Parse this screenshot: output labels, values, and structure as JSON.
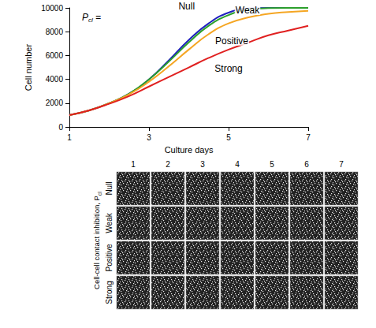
{
  "chart_data": {
    "type": "line",
    "annotation": {
      "text": "P",
      "sub": "cl",
      "after": " ="
    },
    "xlabel": "Culture days",
    "ylabel": "Cell number",
    "x": [
      1,
      1.5,
      2,
      2.5,
      3,
      3.5,
      4,
      4.5,
      5,
      5.5,
      6,
      6.5,
      7
    ],
    "series": [
      {
        "name": "Null",
        "color": "#1f1fbf",
        "values": [
          1000,
          1400,
          2000,
          2800,
          4000,
          5600,
          7300,
          8700,
          9600,
          9950,
          10000,
          10000,
          10000
        ]
      },
      {
        "name": "Weak",
        "color": "#2ca02c",
        "values": [
          1000,
          1400,
          2000,
          2800,
          4000,
          5500,
          7100,
          8500,
          9400,
          9850,
          9980,
          10000,
          10000
        ]
      },
      {
        "name": "Positive",
        "color": "#f5a623",
        "values": [
          1000,
          1400,
          2000,
          2750,
          3800,
          5100,
          6500,
          7800,
          8700,
          9200,
          9500,
          9650,
          9750
        ]
      },
      {
        "name": "Strong",
        "color": "#e02020",
        "values": [
          1000,
          1400,
          1950,
          2600,
          3400,
          4200,
          5000,
          5800,
          6500,
          7100,
          7700,
          8100,
          8500
        ]
      }
    ],
    "xlim": [
      1,
      7
    ],
    "xticks": [
      1,
      3,
      5,
      7
    ],
    "ylim": [
      0,
      10000
    ],
    "yticks": [
      0,
      2000,
      4000,
      6000,
      8000,
      10000
    ],
    "grid": false
  },
  "panel_grid": {
    "column_labels": [
      "1",
      "2",
      "3",
      "4",
      "5",
      "6",
      "7"
    ],
    "row_labels": [
      "Null",
      "Weak",
      "Positive",
      "Strong"
    ],
    "row_axis_title": {
      "text": "Cell-cell contact inhibition, P",
      "sub": "cl"
    }
  }
}
